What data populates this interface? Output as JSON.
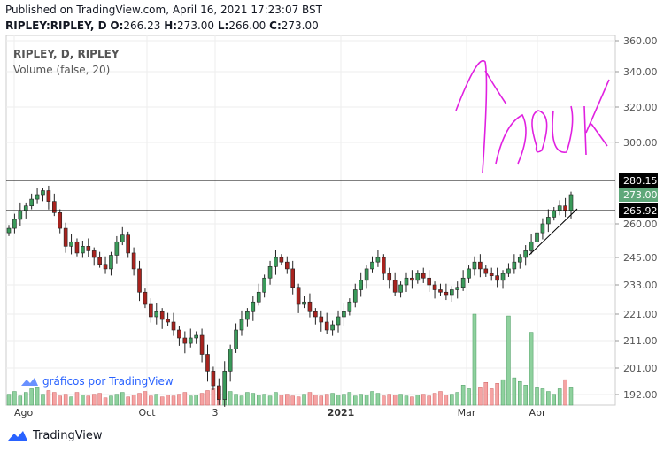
{
  "header": {
    "published": "Published on TradingView.com, April 16, 2021 17:23:07 BST",
    "symbol": "RIPLEY:RIPLEY, D",
    "o_label": "O:",
    "o": "266.23",
    "h_label": "H:",
    "h": "273.00",
    "l_label": "L:",
    "l": "266.00",
    "c_label": "C:",
    "c": "273.00"
  },
  "legend": {
    "series": "RIPLEY, D, RIPLEY",
    "volume": "Volume (false, 20)"
  },
  "watermark": "gráficos por TradingView",
  "footer": {
    "brand": "TradingView"
  },
  "annotation": {
    "text": "moon",
    "color": "#e020e0"
  },
  "colors": {
    "up": "#3a9a5a",
    "down": "#a8231e",
    "vol_up": "#8fd19e",
    "vol_down": "#f5a3a3",
    "badge_last": "#5fa87a",
    "line": "#000000"
  },
  "chart_data": {
    "type": "candlestick",
    "title": "RIPLEY, D, RIPLEY",
    "y_ticks": [
      360,
      340,
      320,
      300,
      260,
      245,
      233,
      221,
      211,
      201,
      192
    ],
    "price_labels": [
      {
        "value": "280.15",
        "kind": "line"
      },
      {
        "value": "273.00",
        "kind": "last"
      },
      {
        "value": "265.92",
        "kind": "line"
      }
    ],
    "hlines": [
      280.15,
      265.92
    ],
    "x_ticks": [
      "Ago",
      "Oct",
      "3",
      "2021",
      "Mar",
      "Abr"
    ],
    "closes": [
      258,
      262,
      266,
      268,
      271,
      273,
      275,
      270,
      265,
      258,
      250,
      252,
      247,
      250,
      248,
      245,
      242,
      240,
      246,
      252,
      255,
      247,
      240,
      230,
      225,
      220,
      222,
      219,
      218,
      215,
      212,
      210,
      212,
      213,
      206,
      200,
      195,
      190,
      200,
      208,
      215,
      219,
      222,
      226,
      230,
      236,
      241,
      245,
      243,
      240,
      232,
      225,
      226,
      222,
      220,
      218,
      215,
      217,
      220,
      222,
      226,
      231,
      235,
      240,
      243,
      245,
      238,
      235,
      230,
      233,
      236,
      235,
      238,
      236,
      233,
      231,
      230,
      229,
      231,
      232,
      236,
      240,
      243,
      240,
      238,
      237,
      235,
      238,
      240,
      243,
      245,
      248,
      252,
      256,
      260,
      263,
      266,
      268,
      266,
      273
    ],
    "volumes": [
      12,
      15,
      10,
      14,
      18,
      20,
      12,
      16,
      14,
      10,
      12,
      9,
      14,
      11,
      10,
      12,
      13,
      8,
      10,
      12,
      14,
      9,
      11,
      13,
      15,
      10,
      12,
      9,
      11,
      10,
      12,
      14,
      10,
      11,
      13,
      16,
      18,
      12,
      14,
      15,
      12,
      10,
      14,
      13,
      11,
      12,
      10,
      14,
      11,
      12,
      10,
      9,
      12,
      14,
      11,
      10,
      12,
      13,
      11,
      12,
      14,
      10,
      12,
      11,
      15,
      13,
      10,
      12,
      11,
      12,
      10,
      9,
      11,
      12,
      10,
      13,
      15,
      11,
      12,
      14,
      22,
      18,
      100,
      20,
      25,
      18,
      24,
      28,
      98,
      30,
      26,
      22,
      80,
      20,
      18,
      15,
      12,
      18,
      28,
      20
    ]
  }
}
